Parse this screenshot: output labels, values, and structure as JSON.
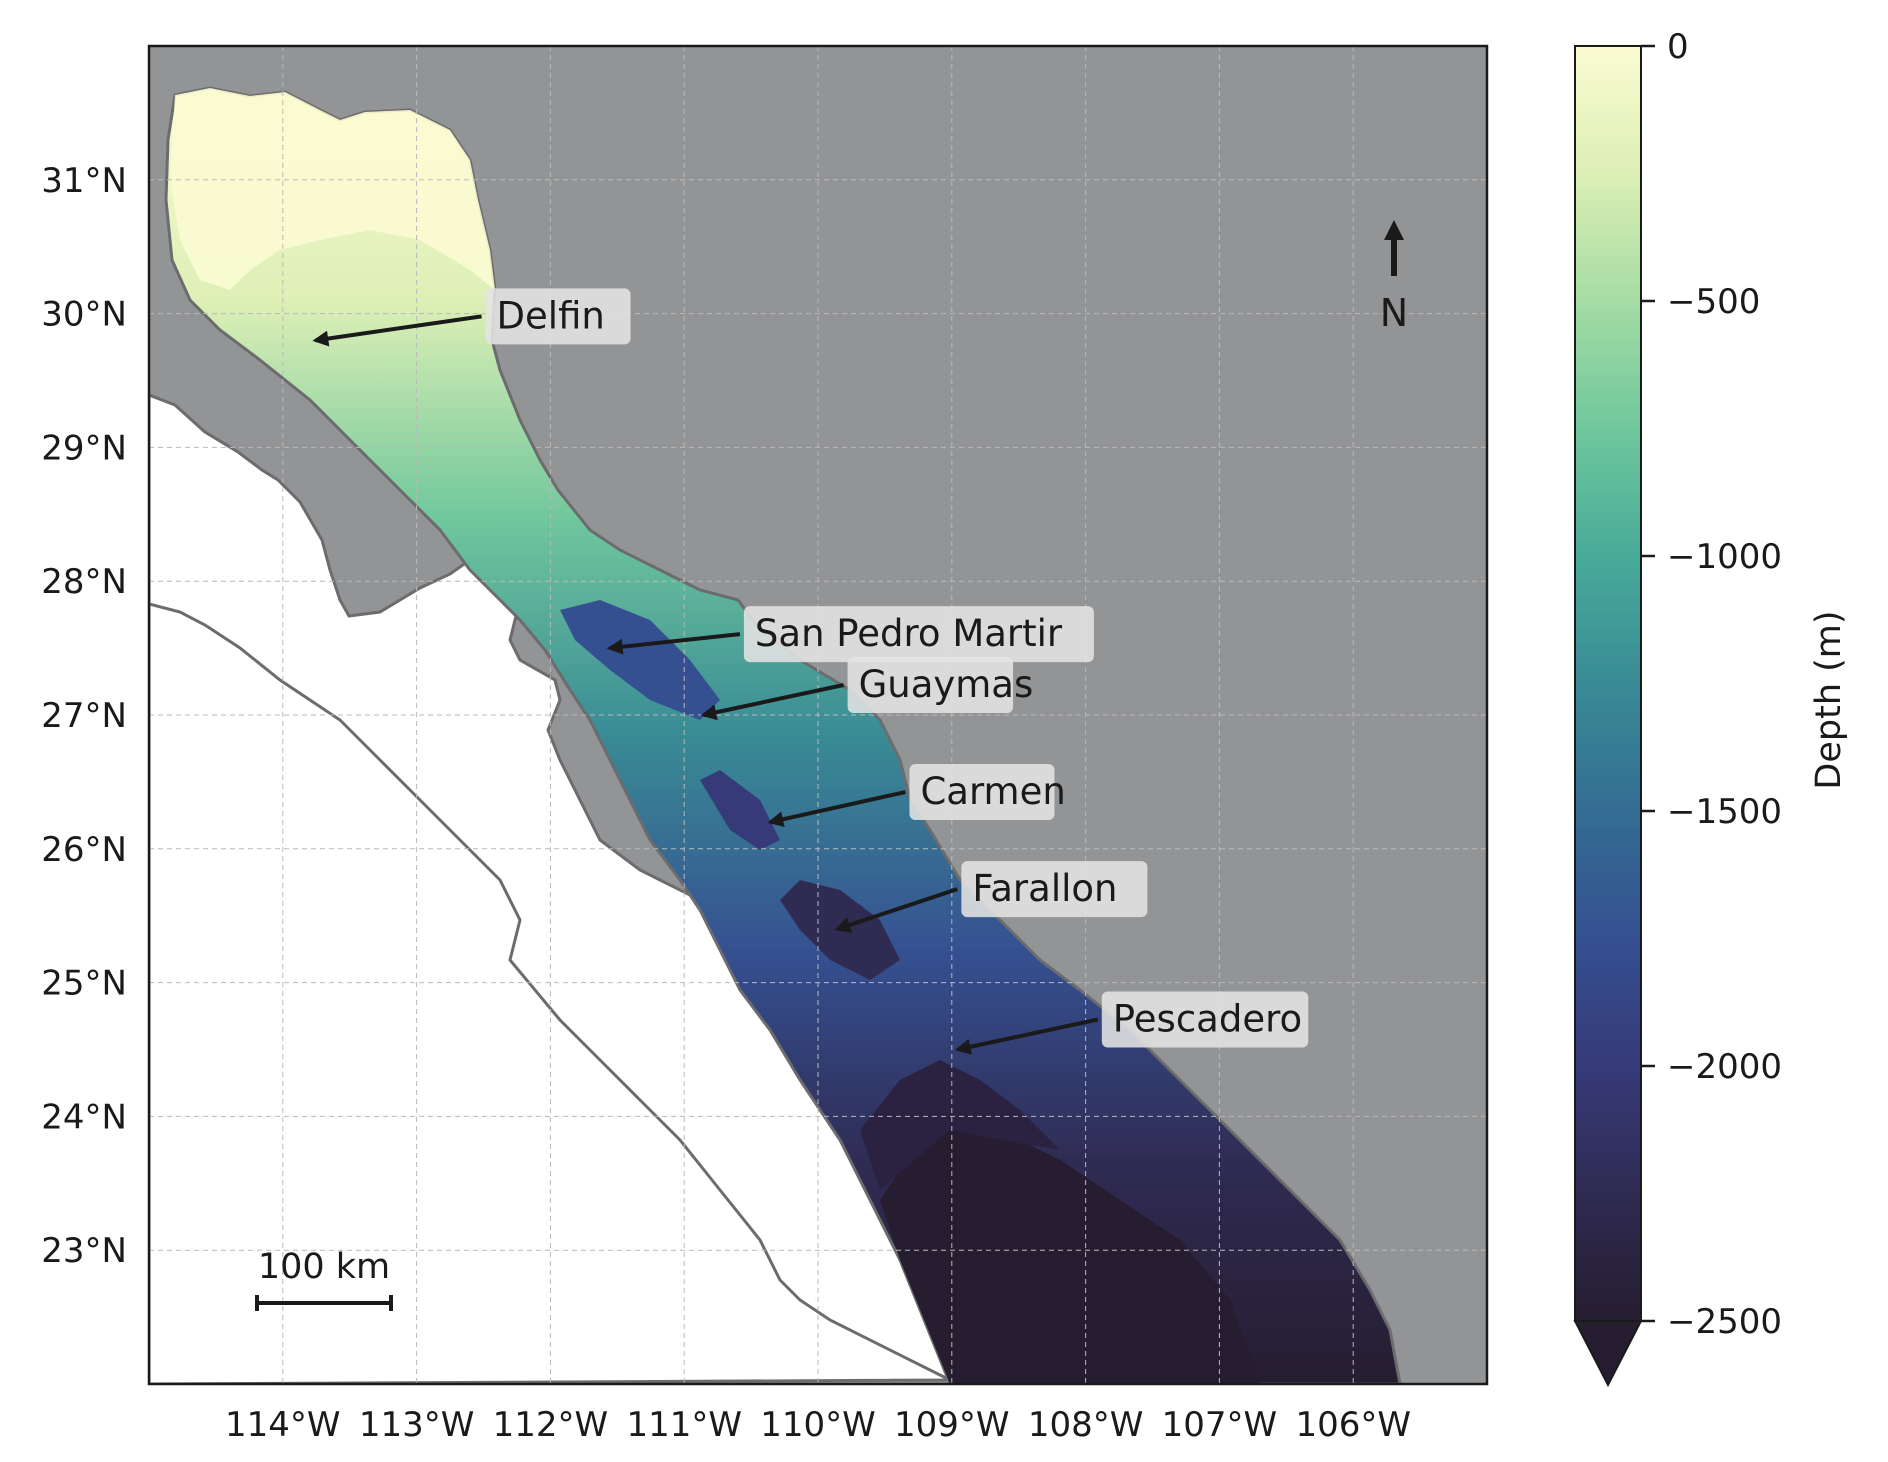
{
  "map": {
    "lon_range": [
      -115.0,
      -105.0
    ],
    "lat_range": [
      22.0,
      32.0
    ],
    "lon_ticks": [
      {
        "value": -114,
        "label": "114°W"
      },
      {
        "value": -113,
        "label": "113°W"
      },
      {
        "value": -112,
        "label": "112°W"
      },
      {
        "value": -111,
        "label": "111°W"
      },
      {
        "value": -110,
        "label": "110°W"
      },
      {
        "value": -109,
        "label": "109°W"
      },
      {
        "value": -108,
        "label": "108°W"
      },
      {
        "value": -107,
        "label": "107°W"
      },
      {
        "value": -106,
        "label": "106°W"
      }
    ],
    "lat_ticks": [
      {
        "value": 31,
        "label": "31°N"
      },
      {
        "value": 30,
        "label": "30°N"
      },
      {
        "value": 29,
        "label": "29°N"
      },
      {
        "value": 28,
        "label": "28°N"
      },
      {
        "value": 27,
        "label": "27°N"
      },
      {
        "value": 26,
        "label": "26°N"
      },
      {
        "value": 25,
        "label": "25°N"
      },
      {
        "value": 24,
        "label": "24°N"
      },
      {
        "value": 23,
        "label": "23°N"
      }
    ],
    "grid": true,
    "land_color": "#939496",
    "ocean_outside_color": "#ffffff",
    "coast_color": "#707072",
    "north_arrow_label": "N",
    "scale_bar": {
      "label": "100 km",
      "length_km": 100
    },
    "basins": [
      {
        "name": "Delfin",
        "lon": -113.8,
        "lat": 29.8
      },
      {
        "name": "San Pedro Martir",
        "lon": -111.6,
        "lat": 27.5
      },
      {
        "name": "Guaymas",
        "lon": -110.9,
        "lat": 27.0
      },
      {
        "name": "Carmen",
        "lon": -110.4,
        "lat": 26.2
      },
      {
        "name": "Farallon",
        "lon": -109.9,
        "lat": 25.4
      },
      {
        "name": "Pescadero",
        "lon": -109.0,
        "lat": 24.5
      }
    ]
  },
  "colorbar": {
    "label": "Depth (m)",
    "range": [
      -2500,
      0
    ],
    "extend": "min",
    "ticks": [
      {
        "value": 0,
        "label": "0"
      },
      {
        "value": -500,
        "label": "−500"
      },
      {
        "value": -1000,
        "label": "−1000"
      },
      {
        "value": -1500,
        "label": "−1500"
      },
      {
        "value": -2000,
        "label": "−2000"
      },
      {
        "value": -2500,
        "label": "−2500"
      }
    ],
    "colors": [
      "#fbfbd2",
      "#dcefb5",
      "#a5dca4",
      "#6fc79c",
      "#48ab99",
      "#398b95",
      "#346d93",
      "#355091",
      "#363a79",
      "#2f2b52",
      "#261d30"
    ]
  }
}
